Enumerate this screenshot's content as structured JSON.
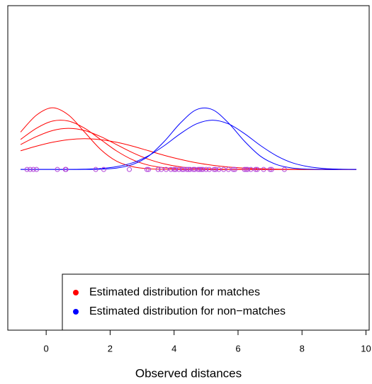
{
  "chart_data": {
    "type": "density",
    "x_label": "Observed distances",
    "xlim": [
      -1.2,
      10.1
    ],
    "xticks": [
      0,
      2,
      4,
      6,
      8,
      10
    ],
    "ylim": [
      -1.04,
      1.06
    ],
    "legend": "bottomright",
    "x": [
      -0.8,
      -0.3,
      0.2,
      0.7,
      1.2,
      1.7,
      2.2,
      2.7,
      3.2,
      3.7,
      4.2,
      4.7,
      5.2,
      5.7,
      6.2,
      6.7,
      7.2,
      7.7,
      8.2,
      8.7,
      9.2,
      9.7
    ],
    "series": [
      {
        "name": "Estimated distribution for matches",
        "color": "#ff0000",
        "curves": [
          [
            0.242,
            0.352,
            0.399,
            0.352,
            0.242,
            0.13,
            0.054,
            0.018,
            0.004,
            0.001,
            0,
            0,
            0,
            0,
            0,
            0,
            0,
            0,
            0,
            0,
            0,
            0
          ],
          [
            0.194,
            0.267,
            0.313,
            0.313,
            0.267,
            0.194,
            0.12,
            0.063,
            0.028,
            0.011,
            0.004,
            0.001,
            0,
            0,
            0,
            0,
            0,
            0,
            0,
            0,
            0,
            0
          ],
          [
            0.161,
            0.213,
            0.252,
            0.266,
            0.252,
            0.213,
            0.161,
            0.109,
            0.066,
            0.036,
            0.017,
            0.008,
            0.003,
            0.001,
            0,
            0,
            0,
            0,
            0,
            0,
            0,
            0
          ],
          [
            0.121,
            0.151,
            0.176,
            0.193,
            0.199,
            0.193,
            0.176,
            0.151,
            0.121,
            0.091,
            0.065,
            0.043,
            0.027,
            0.016,
            0.009,
            0.005,
            0.002,
            0.001,
            0,
            0,
            0,
            0
          ]
        ]
      },
      {
        "name": "Estimated distribution for non−matches",
        "color": "#0000ff",
        "curves": [
          [
            0,
            0,
            0,
            0,
            0,
            0.002,
            0.009,
            0.032,
            0.086,
            0.183,
            0.301,
            0.387,
            0.387,
            0.301,
            0.183,
            0.086,
            0.032,
            0.009,
            0.002,
            0,
            0,
            0
          ],
          [
            0,
            0,
            0,
            0,
            0.002,
            0.006,
            0.018,
            0.043,
            0.089,
            0.155,
            0.232,
            0.295,
            0.319,
            0.295,
            0.232,
            0.155,
            0.089,
            0.043,
            0.018,
            0.006,
            0.002,
            0
          ]
        ]
      }
    ],
    "points": {
      "color": "#b03fd8",
      "x": [
        -0.6,
        -0.5,
        -0.4,
        -0.3,
        0.35,
        0.6,
        0.62,
        1.55,
        1.8,
        2.6,
        3.15,
        3.2,
        3.5,
        3.6,
        3.75,
        3.9,
        4.0,
        4.05,
        4.15,
        4.25,
        4.3,
        4.4,
        4.45,
        4.5,
        4.6,
        4.65,
        4.75,
        4.8,
        4.85,
        4.9,
        5.0,
        5.1,
        5.25,
        5.3,
        5.4,
        5.55,
        5.7,
        5.85,
        5.9,
        6.2,
        6.25,
        6.3,
        6.4,
        6.55,
        6.6,
        6.8,
        7.0,
        7.05,
        7.45
      ]
    }
  }
}
